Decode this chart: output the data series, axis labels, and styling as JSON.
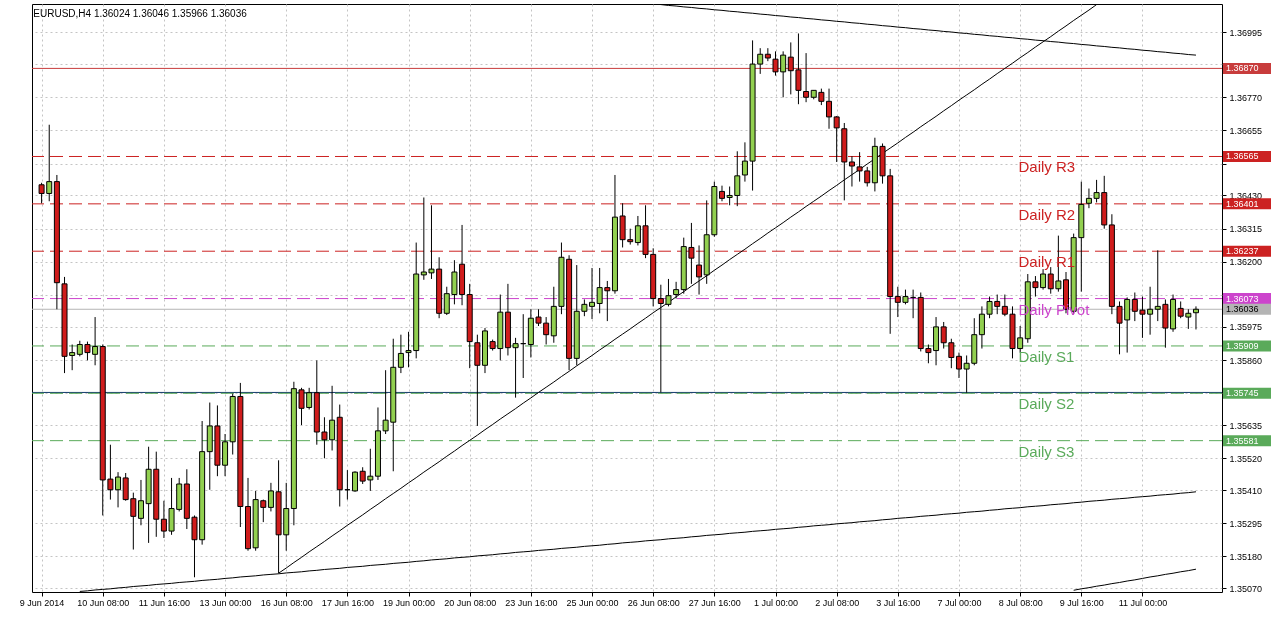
{
  "chart_data": {
    "type": "candlestick",
    "title": "EURUSD,H4  1.36024 1.36046 1.35966 1.36036",
    "categories": [
      "9 Jun 2014",
      null,
      null,
      null,
      null,
      null,
      null,
      null,
      "10 Jun 08:00",
      null,
      null,
      null,
      null,
      null,
      null,
      null,
      "11 Jun 16:00",
      null,
      null,
      null,
      null,
      null,
      null,
      null,
      "13 Jun 00:00",
      null,
      null,
      null,
      null,
      null,
      null,
      null,
      "16 Jun 08:00",
      null,
      null,
      null,
      null,
      null,
      null,
      null,
      "17 Jun 16:00",
      null,
      null,
      null,
      null,
      null,
      null,
      null,
      "19 Jun 00:00",
      null,
      null,
      null,
      null,
      null,
      null,
      null,
      "20 Jun 08:00",
      null,
      null,
      null,
      null,
      null,
      null,
      null,
      "23 Jun 16:00",
      null,
      null,
      null,
      null,
      null,
      null,
      null,
      "25 Jun 00:00",
      null,
      null,
      null,
      null,
      null,
      null,
      null,
      "26 Jun 08:00",
      null,
      null,
      null,
      null,
      null,
      null,
      null,
      "27 Jun 16:00",
      null,
      null,
      null,
      null,
      null,
      null,
      null,
      "1 Jul 00:00",
      null,
      null,
      null,
      null,
      null,
      null,
      null,
      "2 Jul 08:00",
      null,
      null,
      null,
      null,
      null,
      null,
      null,
      "3 Jul 16:00",
      null,
      null,
      null,
      null,
      null,
      null,
      null,
      "7 Jul 00:00",
      null,
      null,
      null,
      null,
      null,
      null,
      null,
      "8 Jul 08:00",
      null,
      null,
      null,
      null,
      null,
      null,
      null,
      "9 Jul 16:00",
      null,
      null,
      null,
      null,
      null,
      null,
      null,
      "11 Jul 00:00",
      null,
      null,
      null,
      null,
      null,
      null,
      null
    ],
    "ohlc": [
      [
        1.36467,
        1.36474,
        1.36403,
        1.36437
      ],
      [
        1.36437,
        1.36675,
        1.3641,
        1.36478
      ],
      [
        1.36478,
        1.36501,
        1.36036,
        1.36128
      ],
      [
        1.36124,
        1.36148,
        1.35815,
        1.35873
      ],
      [
        1.35876,
        1.35914,
        1.35825,
        1.35886
      ],
      [
        1.3588,
        1.35927,
        1.35873,
        1.35914
      ],
      [
        1.35914,
        1.35924,
        1.35859,
        1.35886
      ],
      [
        1.3588,
        1.36009,
        1.35842,
        1.35907
      ],
      [
        1.35907,
        1.35914,
        1.35322,
        1.35445
      ],
      [
        1.35448,
        1.35567,
        1.35377,
        1.35411
      ],
      [
        1.35411,
        1.35472,
        1.3535,
        1.35455
      ],
      [
        1.35452,
        1.35469,
        1.35373,
        1.35377
      ],
      [
        1.3538,
        1.35401,
        1.35204,
        1.35319
      ],
      [
        1.35312,
        1.35445,
        1.35288,
        1.35373
      ],
      [
        1.35363,
        1.3556,
        1.35227,
        1.35482
      ],
      [
        1.35482,
        1.35543,
        1.35248,
        1.35309
      ],
      [
        1.35309,
        1.35373,
        1.35244,
        1.35268
      ],
      [
        1.35268,
        1.35452,
        1.35255,
        1.35346
      ],
      [
        1.35343,
        1.35452,
        1.35336,
        1.35431
      ],
      [
        1.35431,
        1.35482,
        1.35275,
        1.35312
      ],
      [
        1.35316,
        1.35322,
        1.35108,
        1.35238
      ],
      [
        1.35238,
        1.35649,
        1.35221,
        1.35543
      ],
      [
        1.35543,
        1.35713,
        1.35411,
        1.35632
      ],
      [
        1.35632,
        1.35703,
        1.35458,
        1.35496
      ],
      [
        1.35496,
        1.35604,
        1.35458,
        1.35577
      ],
      [
        1.35577,
        1.35744,
        1.35533,
        1.35734
      ],
      [
        1.35734,
        1.35781,
        1.35282,
        1.35353
      ],
      [
        1.35353,
        1.35452,
        1.352,
        1.35207
      ],
      [
        1.3521,
        1.35407,
        1.352,
        1.35377
      ],
      [
        1.35373,
        1.35377,
        1.35299,
        1.3535
      ],
      [
        1.3535,
        1.35435,
        1.35336,
        1.35407
      ],
      [
        1.35404,
        1.35513,
        1.35122,
        1.35255
      ],
      [
        1.35255,
        1.35435,
        1.352,
        1.35346
      ],
      [
        1.35346,
        1.35785,
        1.35288,
        1.35761
      ],
      [
        1.35757,
        1.35764,
        1.35635,
        1.35693
      ],
      [
        1.35696,
        1.35764,
        1.35689,
        1.35747
      ],
      [
        1.35747,
        1.35859,
        1.35567,
        1.35611
      ],
      [
        1.35611,
        1.35662,
        1.3552,
        1.35584
      ],
      [
        1.35584,
        1.35771,
        1.35547,
        1.35652
      ],
      [
        1.35662,
        1.35706,
        1.35353,
        1.35411
      ],
      [
        1.35411,
        1.35479,
        1.35377,
        1.35411
      ],
      [
        1.35407,
        1.35475,
        1.35404,
        1.35472
      ],
      [
        1.35475,
        1.35489,
        1.35431,
        1.35441
      ],
      [
        1.35445,
        1.35553,
        1.35407,
        1.35458
      ],
      [
        1.35458,
        1.35696,
        1.35445,
        1.35615
      ],
      [
        1.35615,
        1.35825,
        1.35604,
        1.35652
      ],
      [
        1.35645,
        1.35934,
        1.35475,
        1.35835
      ],
      [
        1.35835,
        1.35948,
        1.35815,
        1.35883
      ],
      [
        1.35886,
        1.35958,
        1.35835,
        1.35893
      ],
      [
        1.35893,
        1.36267,
        1.35866,
        1.36158
      ],
      [
        1.36155,
        1.36423,
        1.36138,
        1.36165
      ],
      [
        1.36162,
        1.36396,
        1.36141,
        1.36175
      ],
      [
        1.36175,
        1.36216,
        1.36005,
        1.36022
      ],
      [
        1.36022,
        1.36114,
        1.36016,
        1.3609
      ],
      [
        1.36087,
        1.36206,
        1.36053,
        1.36165
      ],
      [
        1.36192,
        1.36328,
        1.3605,
        1.36087
      ],
      [
        1.36087,
        1.36124,
        1.35832,
        1.35924
      ],
      [
        1.3592,
        1.35948,
        1.35632,
        1.35842
      ],
      [
        1.35842,
        1.35971,
        1.35815,
        1.35961
      ],
      [
        1.35924,
        1.35931,
        1.35893,
        1.359
      ],
      [
        1.359,
        1.36087,
        1.35859,
        1.36026
      ],
      [
        1.36026,
        1.36124,
        1.35876,
        1.35903
      ],
      [
        1.35903,
        1.35937,
        1.3573,
        1.35917
      ],
      [
        1.35917,
        1.36019,
        1.35798,
        1.35917
      ],
      [
        1.35914,
        1.36036,
        1.35869,
        1.36005
      ],
      [
        1.36009,
        1.36036,
        1.35978,
        1.35988
      ],
      [
        1.35988,
        1.36009,
        1.35914,
        1.35948
      ],
      [
        1.35944,
        1.36114,
        1.3592,
        1.36046
      ],
      [
        1.36046,
        1.36267,
        1.36019,
        1.36216
      ],
      [
        1.36209,
        1.36223,
        1.35825,
        1.35866
      ],
      [
        1.35866,
        1.36189,
        1.35842,
        1.36029
      ],
      [
        1.36029,
        1.3607,
        1.36012,
        1.36053
      ],
      [
        1.36046,
        1.36179,
        1.36002,
        1.3606
      ],
      [
        1.36056,
        1.36179,
        1.36022,
        1.36111
      ],
      [
        1.36111,
        1.36134,
        1.35995,
        1.361
      ],
      [
        1.361,
        1.36501,
        1.3609,
        1.36355
      ],
      [
        1.36359,
        1.36403,
        1.3625,
        1.36277
      ],
      [
        1.36277,
        1.36315,
        1.3626,
        1.3627
      ],
      [
        1.36267,
        1.36359,
        1.36257,
        1.36325
      ],
      [
        1.36325,
        1.36396,
        1.36213,
        1.36226
      ],
      [
        1.36226,
        1.36247,
        1.36046,
        1.36073
      ],
      [
        1.36073,
        1.36121,
        1.35748,
        1.36056
      ],
      [
        1.36053,
        1.36141,
        1.36046,
        1.36083
      ],
      [
        1.36087,
        1.36131,
        1.36073,
        1.36104
      ],
      [
        1.36104,
        1.36284,
        1.3609,
        1.36253
      ],
      [
        1.3625,
        1.36335,
        1.36124,
        1.36213
      ],
      [
        1.36189,
        1.36257,
        1.36087,
        1.36148
      ],
      [
        1.36155,
        1.36413,
        1.36124,
        1.36294
      ],
      [
        1.36294,
        1.36478,
        1.36287,
        1.36461
      ],
      [
        1.36444,
        1.36464,
        1.3641,
        1.3642
      ],
      [
        1.36423,
        1.36461,
        1.36396,
        1.3643
      ],
      [
        1.3643,
        1.36583,
        1.36393,
        1.36498
      ],
      [
        1.36501,
        1.36614,
        1.36478,
        1.36549
      ],
      [
        1.36549,
        1.36967,
        1.36447,
        1.36885
      ],
      [
        1.36885,
        1.3694,
        1.36851,
        1.36919
      ],
      [
        1.36919,
        1.3694,
        1.36895,
        1.36906
      ],
      [
        1.36902,
        1.36929,
        1.36845,
        1.36858
      ],
      [
        1.36858,
        1.36929,
        1.3677,
        1.36916
      ],
      [
        1.36909,
        1.3696,
        1.3678,
        1.36862
      ],
      [
        1.36865,
        1.36991,
        1.36746,
        1.36794
      ],
      [
        1.3679,
        1.36923,
        1.36753,
        1.3677
      ],
      [
        1.3677,
        1.36794,
        1.36763,
        1.36794
      ],
      [
        1.36787,
        1.368,
        1.36743,
        1.36756
      ],
      [
        1.36756,
        1.368,
        1.36661,
        1.36702
      ],
      [
        1.36702,
        1.36705,
        1.36546,
        1.36664
      ],
      [
        1.36661,
        1.36681,
        1.36413,
        1.36546
      ],
      [
        1.36546,
        1.36566,
        1.36461,
        1.36532
      ],
      [
        1.36529,
        1.3658,
        1.36478,
        1.36515
      ],
      [
        1.36515,
        1.36529,
        1.36461,
        1.36474
      ],
      [
        1.36474,
        1.3663,
        1.36444,
        1.366
      ],
      [
        1.366,
        1.3661,
        1.36471,
        1.36498
      ],
      [
        1.36498,
        1.36522,
        1.35951,
        1.3608
      ],
      [
        1.3608,
        1.36114,
        1.36009,
        1.3606
      ],
      [
        1.3606,
        1.36104,
        1.36053,
        1.3608
      ],
      [
        1.36077,
        1.36104,
        1.36005,
        1.36077
      ],
      [
        1.36077,
        1.36094,
        1.3589,
        1.359
      ],
      [
        1.359,
        1.35914,
        1.35849,
        1.35886
      ],
      [
        1.35893,
        1.36009,
        1.35842,
        1.35975
      ],
      [
        1.35975,
        1.35992,
        1.359,
        1.3592
      ],
      [
        1.3592,
        1.35934,
        1.35832,
        1.35869
      ],
      [
        1.35873,
        1.35886,
        1.35798,
        1.35829
      ],
      [
        1.35829,
        1.35876,
        1.35747,
        1.35849
      ],
      [
        1.35849,
        1.36005,
        1.35842,
        1.35948
      ],
      [
        1.35948,
        1.36046,
        1.359,
        1.36019
      ],
      [
        1.36019,
        1.3608,
        1.36005,
        1.36063
      ],
      [
        1.36063,
        1.36087,
        1.36019,
        1.36046
      ],
      [
        1.36046,
        1.36087,
        1.36012,
        1.36019
      ],
      [
        1.36019,
        1.36046,
        1.35866,
        1.359
      ],
      [
        1.359,
        1.35978,
        1.35886,
        1.35937
      ],
      [
        1.35934,
        1.36158,
        1.3592,
        1.36131
      ],
      [
        1.36131,
        1.36151,
        1.3608,
        1.36111
      ],
      [
        1.36111,
        1.36175,
        1.36104,
        1.36158
      ],
      [
        1.36158,
        1.36182,
        1.3609,
        1.36107
      ],
      [
        1.36107,
        1.36291,
        1.36097,
        1.36134
      ],
      [
        1.36138,
        1.36165,
        1.36022,
        1.36036
      ],
      [
        1.36029,
        1.36298,
        1.36019,
        1.36284
      ],
      [
        1.36284,
        1.36478,
        1.36097,
        1.36399
      ],
      [
        1.36403,
        1.36454,
        1.36386,
        1.3642
      ],
      [
        1.3642,
        1.36484,
        1.36406,
        1.3644
      ],
      [
        1.3644,
        1.36498,
        1.36315,
        1.36328
      ],
      [
        1.36328,
        1.36365,
        1.36019,
        1.36046
      ],
      [
        1.36046,
        1.36063,
        1.3588,
        1.35988
      ],
      [
        1.35999,
        1.36077,
        1.35886,
        1.3607
      ],
      [
        1.3607,
        1.36094,
        1.35995,
        1.36029
      ],
      [
        1.36033,
        1.3608,
        1.35937,
        1.36019
      ],
      [
        1.36019,
        1.36114,
        1.35948,
        1.36036
      ],
      [
        1.36036,
        1.3624,
        1.35995,
        1.36046
      ],
      [
        1.36053,
        1.3607,
        1.35903,
        1.35971
      ],
      [
        1.35968,
        1.36087,
        1.35958,
        1.3607
      ],
      [
        1.36039,
        1.36063,
        1.36005,
        1.36012
      ],
      [
        1.36009,
        1.36036,
        1.35968,
        1.36022
      ],
      [
        1.36024,
        1.36046,
        1.35966,
        1.36036
      ]
    ],
    "colors": [
      "#d01c1c",
      "#92d050",
      "#d01c1c",
      "#d01c1c",
      "#92d050",
      "#92d050",
      "#d01c1c",
      "#92d050",
      "#d01c1c",
      "#d01c1c",
      "#92d050",
      "#d01c1c",
      "#d01c1c",
      "#92d050",
      "#92d050",
      "#d01c1c",
      "#d01c1c",
      "#92d050",
      "#92d050",
      "#d01c1c",
      "#d01c1c",
      "#92d050",
      "#92d050",
      "#d01c1c",
      "#92d050",
      "#92d050",
      "#d01c1c",
      "#d01c1c",
      "#92d050",
      "#d01c1c",
      "#92d050",
      "#d01c1c",
      "#92d050",
      "#92d050",
      "#d01c1c",
      "#92d050",
      "#d01c1c",
      "#d01c1c",
      "#92d050",
      "#d01c1c",
      "#000000",
      "#92d050",
      "#d01c1c",
      "#92d050",
      "#92d050",
      "#92d050",
      "#92d050",
      "#92d050",
      "#92d050",
      "#92d050",
      "#92d050",
      "#92d050",
      "#d01c1c",
      "#92d050",
      "#92d050",
      "#d01c1c",
      "#d01c1c",
      "#d01c1c",
      "#92d050",
      "#d01c1c",
      "#92d050",
      "#d01c1c",
      "#92d050",
      "#000000",
      "#92d050",
      "#d01c1c",
      "#d01c1c",
      "#92d050",
      "#92d050",
      "#d01c1c",
      "#92d050",
      "#92d050",
      "#92d050",
      "#92d050",
      "#d01c1c",
      "#92d050",
      "#d01c1c",
      "#d01c1c",
      "#92d050",
      "#d01c1c",
      "#d01c1c",
      "#d01c1c",
      "#92d050",
      "#92d050",
      "#92d050",
      "#d01c1c",
      "#d01c1c",
      "#92d050",
      "#92d050",
      "#d01c1c",
      "#92d050",
      "#92d050",
      "#92d050",
      "#92d050",
      "#92d050",
      "#d01c1c",
      "#d01c1c",
      "#92d050",
      "#d01c1c",
      "#d01c1c",
      "#d01c1c",
      "#92d050",
      "#d01c1c",
      "#d01c1c",
      "#d01c1c",
      "#d01c1c",
      "#d01c1c",
      "#d01c1c",
      "#d01c1c",
      "#92d050",
      "#d01c1c",
      "#d01c1c",
      "#d01c1c",
      "#92d050",
      "#000000",
      "#d01c1c",
      "#d01c1c",
      "#92d050",
      "#d01c1c",
      "#d01c1c",
      "#d01c1c",
      "#92d050",
      "#92d050",
      "#92d050",
      "#92d050",
      "#d01c1c",
      "#d01c1c",
      "#d01c1c",
      "#92d050",
      "#92d050",
      "#d01c1c",
      "#92d050",
      "#d01c1c",
      "#92d050",
      "#d01c1c",
      "#92d050",
      "#92d050",
      "#92d050",
      "#92d050",
      "#d01c1c",
      "#d01c1c",
      "#d01c1c",
      "#92d050",
      "#d01c1c",
      "#d01c1c",
      "#92d050",
      "#92d050",
      "#d01c1c",
      "#92d050",
      "#d01c1c",
      "#92d050",
      "#92d050"
    ],
    "series": [
      {
        "type": "line",
        "color": "#000000",
        "values": [
          null,
          null,
          null,
          null,
          null,
          null,
          null,
          null,
          null,
          null,
          null,
          null,
          null,
          null,
          null,
          null,
          null,
          null,
          null,
          null,
          null,
          null,
          null,
          null,
          null,
          null,
          null,
          null,
          null,
          null,
          null,
          null,
          null,
          null,
          null,
          null,
          null,
          null,
          null,
          null,
          null,
          null,
          null,
          null,
          null,
          null,
          null,
          null,
          null,
          null,
          null,
          null,
          null,
          null,
          null,
          null,
          null,
          null,
          null,
          null,
          null,
          null,
          null,
          null,
          null,
          null,
          null,
          null,
          null,
          null,
          null,
          null,
          null,
          null,
          null,
          null,
          null,
          null,
          null,
          null,
          1.37093,
          1.37091,
          1.37088,
          1.37086,
          1.37083,
          1.37081,
          1.37078,
          1.37076,
          1.37073,
          1.37071,
          1.37068,
          1.37066,
          1.37063,
          1.37061,
          1.37058,
          1.37056,
          1.37053,
          1.37051,
          1.37048,
          1.37046,
          1.37043,
          1.37041,
          1.37038,
          1.37036,
          1.37033,
          1.37031,
          1.37028,
          1.37026,
          1.37023,
          1.37021,
          1.37018,
          1.37016,
          1.37013,
          1.37011,
          1.37008,
          1.37006,
          1.37003,
          1.37001,
          1.36998,
          1.36996,
          1.36993,
          1.36991,
          1.36988,
          1.36986,
          1.36983,
          1.36981,
          1.36978,
          1.36976,
          1.36973,
          1.36971,
          1.36968,
          1.36966,
          1.36963,
          1.36961,
          1.36958,
          1.36956,
          1.36953,
          1.36951,
          1.36948,
          1.36946,
          1.36943,
          1.36941,
          1.36938,
          1.36936,
          1.36933,
          1.36931,
          1.36928,
          1.36926,
          1.36923,
          1.36921,
          1.36918,
          1.36916
        ]
      },
      {
        "type": "line",
        "color": "#000000",
        "values": [
          null,
          null,
          null,
          null,
          null,
          null,
          null,
          null,
          null,
          null,
          null,
          null,
          null,
          null,
          null,
          null,
          null,
          null,
          null,
          null,
          null,
          null,
          null,
          null,
          null,
          null,
          null,
          null,
          null,
          null,
          null,
          1.35122,
          1.3514,
          1.35159,
          1.35177,
          1.35196,
          1.35214,
          1.35232,
          1.35251,
          1.35269,
          1.35288,
          1.35306,
          1.35324,
          1.35343,
          1.35361,
          1.3538,
          1.35398,
          1.35416,
          1.35435,
          1.35453,
          1.35472,
          1.3549,
          1.35508,
          1.35527,
          1.35545,
          1.35564,
          1.35582,
          1.356,
          1.35619,
          1.35637,
          1.35656,
          1.35674,
          1.35692,
          1.35711,
          1.35729,
          1.35748,
          1.35766,
          1.35784,
          1.35803,
          1.35821,
          1.3584,
          1.35858,
          1.35876,
          1.35895,
          1.35913,
          1.35932,
          1.3595,
          1.35968,
          1.35987,
          1.36005,
          1.36024,
          1.36042,
          1.3606,
          1.36079,
          1.36097,
          1.36116,
          1.36134,
          1.36152,
          1.36171,
          1.36189,
          1.36208,
          1.36226,
          1.36244,
          1.36263,
          1.36281,
          1.363,
          1.36318,
          1.36336,
          1.36355,
          1.36373,
          1.36392,
          1.3641,
          1.36428,
          1.36447,
          1.36465,
          1.36484,
          1.36502,
          1.3652,
          1.36539,
          1.36557,
          1.36576,
          1.36594,
          1.36612,
          1.36631,
          1.36649,
          1.36668,
          1.36686,
          1.36704,
          1.36723,
          1.36741,
          1.3676,
          1.36778,
          1.36796,
          1.36815,
          1.36833,
          1.36852,
          1.3687,
          1.36888,
          1.36907,
          1.36925,
          1.36944,
          1.36962,
          1.3698,
          1.36999,
          1.37017,
          1.37036,
          1.37054,
          1.37072,
          1.37091,
          null,
          null,
          null,
          null,
          null,
          null,
          null,
          null,
          null,
          null,
          null,
          null,
          null
        ]
      },
      {
        "type": "line",
        "color": "#000000",
        "values": [
          null,
          null,
          null,
          null,
          null,
          1.35059,
          1.35061,
          1.35064,
          1.35066,
          1.35068,
          1.35071,
          1.35073,
          1.35076,
          1.35078,
          1.3508,
          1.35083,
          1.35085,
          1.35087,
          1.3509,
          1.35092,
          1.35094,
          1.35097,
          1.35099,
          1.35101,
          1.35104,
          1.35106,
          1.35109,
          1.35111,
          1.35113,
          1.35116,
          1.35118,
          1.3512,
          1.35123,
          1.35125,
          1.35127,
          1.3513,
          1.35132,
          1.35135,
          1.35137,
          1.35139,
          1.35142,
          1.35144,
          1.35146,
          1.35149,
          1.35151,
          1.35153,
          1.35156,
          1.35158,
          1.3516,
          1.35163,
          1.35165,
          1.35168,
          1.3517,
          1.35172,
          1.35175,
          1.35177,
          1.35179,
          1.35182,
          1.35184,
          1.35186,
          1.35189,
          1.35191,
          1.35194,
          1.35196,
          1.35198,
          1.35201,
          1.35203,
          1.35205,
          1.35208,
          1.3521,
          1.35212,
          1.35215,
          1.35217,
          1.35219,
          1.35222,
          1.35224,
          1.35227,
          1.35229,
          1.35231,
          1.35234,
          1.35236,
          1.35238,
          1.35241,
          1.35243,
          1.35245,
          1.35248,
          1.3525,
          1.35253,
          1.35255,
          1.35257,
          1.3526,
          1.35262,
          1.35264,
          1.35267,
          1.35269,
          1.35271,
          1.35274,
          1.35276,
          1.35278,
          1.35281,
          1.35283,
          1.35286,
          1.35288,
          1.3529,
          1.35293,
          1.35295,
          1.35297,
          1.353,
          1.35302,
          1.35304,
          1.35307,
          1.35309,
          1.35312,
          1.35314,
          1.35316,
          1.35319,
          1.35321,
          1.35323,
          1.35326,
          1.35328,
          1.3533,
          1.35333,
          1.35335,
          1.35337,
          1.3534,
          1.35342,
          1.35345,
          1.35347,
          1.35349,
          1.35352,
          1.35354,
          1.35356,
          1.35359,
          1.35361,
          1.35363,
          1.35366,
          1.35368,
          1.35371,
          1.35373,
          1.35375,
          1.35378,
          1.3538,
          1.35382,
          1.35385,
          1.35387,
          1.35389,
          1.35392,
          1.35394,
          1.35396,
          1.35399,
          1.35401,
          1.35404
        ]
      },
      {
        "type": "line",
        "color": "#000000",
        "values": [
          null,
          null,
          null,
          null,
          null,
          null,
          null,
          null,
          null,
          null,
          null,
          null,
          null,
          null,
          null,
          null,
          null,
          null,
          null,
          null,
          null,
          null,
          null,
          null,
          null,
          null,
          null,
          null,
          null,
          null,
          null,
          null,
          null,
          null,
          null,
          null,
          null,
          null,
          null,
          null,
          null,
          null,
          null,
          null,
          null,
          null,
          null,
          null,
          null,
          null,
          null,
          null,
          null,
          null,
          null,
          null,
          null,
          null,
          null,
          null,
          null,
          null,
          null,
          null,
          null,
          null,
          null,
          null,
          null,
          null,
          null,
          null,
          null,
          null,
          null,
          null,
          null,
          null,
          null,
          null,
          null,
          null,
          null,
          null,
          null,
          null,
          null,
          null,
          null,
          null,
          null,
          null,
          null,
          null,
          null,
          null,
          null,
          null,
          null,
          null,
          null,
          null,
          null,
          null,
          null,
          null,
          null,
          null,
          null,
          null,
          null,
          null,
          null,
          null,
          null,
          null,
          null,
          null,
          null,
          null,
          null,
          null,
          null,
          null,
          null,
          null,
          null,
          null,
          null,
          null,
          null,
          null,
          null,
          null,
          null,
          1.35063,
          1.35068,
          1.35072,
          1.35077,
          1.35081,
          1.35086,
          1.3509,
          1.35095,
          1.35099,
          1.35104,
          1.35109,
          1.35113,
          1.35118,
          1.35122,
          1.35127,
          1.35131,
          1.35136
        ]
      }
    ],
    "ylim": [
      1.35057,
      1.37093
    ],
    "yticks": [
      1.36995,
      {
        "value": 1.36885,
        "label": null
      },
      {
        "value": 1.3677,
        "label": "1.36770"
      },
      1.36655,
      {
        "value": 1.3654,
        "label": null
      },
      {
        "value": 1.3643,
        "label": "1.36430"
      },
      1.36315,
      {
        "value": 1.362,
        "label": "1.36200"
      },
      {
        "value": 1.36085,
        "label": null
      },
      1.35975,
      {
        "value": 1.3586,
        "label": "1.35860"
      },
      {
        "value": 1.35745,
        "label": null
      },
      1.35635,
      {
        "value": 1.3552,
        "label": "1.35520"
      },
      {
        "value": 1.3541,
        "label": "1.35410"
      },
      1.35295,
      {
        "value": 1.3518,
        "label": "1.35180"
      },
      {
        "value": 1.3507,
        "label": "1.35070"
      }
    ],
    "grid": true,
    "ref_lines": [
      {
        "axis": "y",
        "value": 1.3687,
        "label": "1.36870",
        "color": "#c83c3c",
        "line_style": "solid"
      },
      {
        "axis": "y",
        "value": 1.36565,
        "label": "1.36565",
        "color": "#cc2222",
        "line_style": "dashed"
      },
      {
        "axis": "y",
        "value": 1.36401,
        "label": "1.36401",
        "color": "#cc2222",
        "line_style": "dashed"
      },
      {
        "axis": "y",
        "value": 1.36237,
        "label": "1.36237",
        "color": "#cc2222",
        "line_style": "dashed"
      },
      {
        "axis": "y",
        "value": 1.36073,
        "label": "1.36073",
        "color": "#cc44cc",
        "line_style": "dashed"
      },
      {
        "axis": "y",
        "value": 1.36036,
        "label": "1.36036",
        "color": "#b4b4b4",
        "line_style": "solid"
      },
      {
        "axis": "y",
        "value": 1.35909,
        "label": "1.35909",
        "color": "#5aaa5a",
        "line_style": "dashed"
      },
      {
        "axis": "y",
        "value": 1.35748,
        "color": "#123a6a",
        "line_style": "solid"
      },
      {
        "axis": "y",
        "value": 1.35745,
        "label": "1.35745",
        "color": "#5aaa5a",
        "line_style": "dashed"
      },
      {
        "axis": "y",
        "value": 1.35581,
        "label": "1.35581",
        "color": "#5aaa5a",
        "line_style": "dashed"
      }
    ],
    "annotations": [
      {
        "text": "Daily R3",
        "y": 1.36565
      },
      {
        "text": "Daily R2",
        "y": 1.36401
      },
      {
        "text": "Daily R1",
        "y": 1.36237
      },
      {
        "text": "Daily Pivot",
        "y": 1.36073
      },
      {
        "text": "Daily S1",
        "y": 1.35909
      },
      {
        "text": "Daily S2",
        "y": 1.35745
      },
      {
        "text": "Daily S3",
        "y": 1.35581
      }
    ]
  }
}
